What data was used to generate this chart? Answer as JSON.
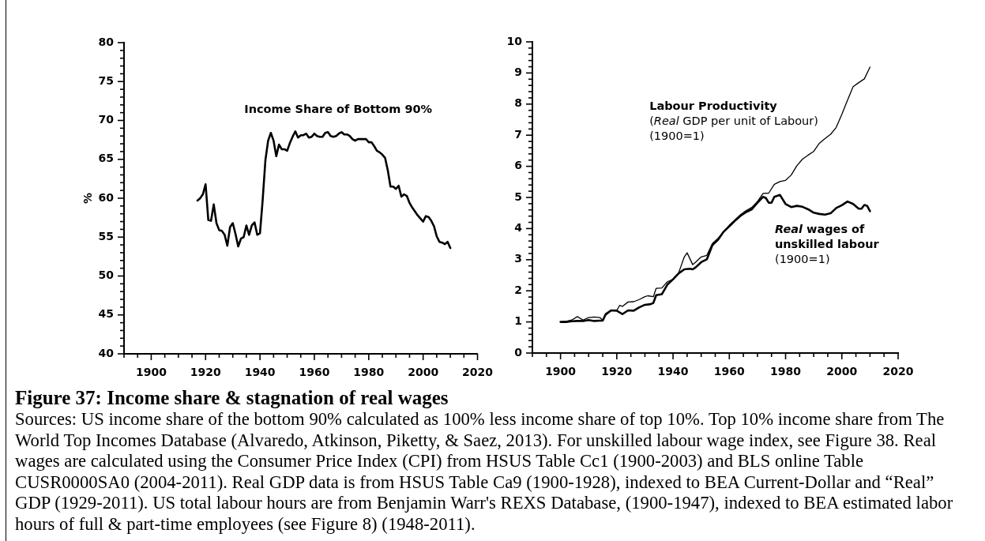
{
  "chart_data": [
    {
      "type": "line",
      "ylabel": "%",
      "marker": "none",
      "x": [
        1917,
        1918,
        1919,
        1920,
        1921,
        1922,
        1923,
        1924,
        1925,
        1926,
        1927,
        1928,
        1929,
        1930,
        1931,
        1932,
        1933,
        1934,
        1935,
        1936,
        1937,
        1938,
        1939,
        1940,
        1941,
        1942,
        1943,
        1944,
        1945,
        1946,
        1947,
        1948,
        1949,
        1950,
        1951,
        1952,
        1953,
        1954,
        1955,
        1956,
        1957,
        1958,
        1959,
        1960,
        1961,
        1962,
        1963,
        1964,
        1965,
        1966,
        1967,
        1968,
        1969,
        1970,
        1971,
        1972,
        1973,
        1974,
        1975,
        1976,
        1977,
        1978,
        1979,
        1980,
        1981,
        1982,
        1983,
        1984,
        1985,
        1986,
        1987,
        1988,
        1989,
        1990,
        1991,
        1992,
        1993,
        1994,
        1995,
        1996,
        1997,
        1998,
        1999,
        2000,
        2001,
        2002,
        2003,
        2004,
        2005,
        2006,
        2007,
        2008,
        2009,
        2010
      ],
      "series": [
        {
          "name": "Income Share of Bottom 90%",
          "color": "#000000",
          "values": [
            59.7,
            60.0,
            60.5,
            61.8,
            57.2,
            57.1,
            59.2,
            56.8,
            55.9,
            55.8,
            55.3,
            53.9,
            56.3,
            56.8,
            55.4,
            53.8,
            54.8,
            55.0,
            56.5,
            55.3,
            56.5,
            56.9,
            55.3,
            55.5,
            59.8,
            64.9,
            67.4,
            68.4,
            67.4,
            65.4,
            66.9,
            66.3,
            66.3,
            66.1,
            67.1,
            67.9,
            68.6,
            67.8,
            68.1,
            68.1,
            68.3,
            67.8,
            67.9,
            68.3,
            68.0,
            67.9,
            67.9,
            68.4,
            68.5,
            68.0,
            67.9,
            68.0,
            68.3,
            68.5,
            68.2,
            68.2,
            68.0,
            67.6,
            67.4,
            67.6,
            67.6,
            67.6,
            67.6,
            67.2,
            67.2,
            66.7,
            66.1,
            65.9,
            65.6,
            65.2,
            63.6,
            61.5,
            61.5,
            61.2,
            61.6,
            60.2,
            60.5,
            60.3,
            59.4,
            58.8,
            58.3,
            57.8,
            57.4,
            57.0,
            57.7,
            57.6,
            57.1,
            56.4,
            55.1,
            54.4,
            54.3,
            54.1,
            54.4,
            53.6
          ]
        }
      ],
      "xlim": [
        1890,
        2020
      ],
      "xticks": [
        {
          "value": 1890,
          "label": null
        },
        {
          "value": 1895,
          "label": null
        },
        1900,
        {
          "value": 1905,
          "label": null
        },
        {
          "value": 1910,
          "label": null
        },
        {
          "value": 1915,
          "label": null
        },
        1920,
        {
          "value": 1925,
          "label": null
        },
        {
          "value": 1930,
          "label": null
        },
        {
          "value": 1935,
          "label": null
        },
        1940,
        {
          "value": 1945,
          "label": null
        },
        {
          "value": 1950,
          "label": null
        },
        {
          "value": 1955,
          "label": null
        },
        1960,
        {
          "value": 1965,
          "label": null
        },
        {
          "value": 1970,
          "label": null
        },
        {
          "value": 1975,
          "label": null
        },
        1980,
        {
          "value": 1985,
          "label": null
        },
        {
          "value": 1990,
          "label": null
        },
        {
          "value": 1995,
          "label": null
        },
        2000,
        {
          "value": 2005,
          "label": null
        },
        {
          "value": 2010,
          "label": null
        },
        {
          "value": 2015,
          "label": null
        },
        2020
      ],
      "ylim": [
        40,
        80
      ],
      "yticks": [
        40,
        {
          "value": 41,
          "label": null
        },
        {
          "value": 42,
          "label": null
        },
        {
          "value": 43,
          "label": null
        },
        {
          "value": 44,
          "label": null
        },
        45,
        {
          "value": 46,
          "label": null
        },
        {
          "value": 47,
          "label": null
        },
        {
          "value": 48,
          "label": null
        },
        {
          "value": 49,
          "label": null
        },
        50,
        {
          "value": 51,
          "label": null
        },
        {
          "value": 52,
          "label": null
        },
        {
          "value": 53,
          "label": null
        },
        {
          "value": 54,
          "label": null
        },
        55,
        {
          "value": 56,
          "label": null
        },
        {
          "value": 57,
          "label": null
        },
        {
          "value": 58,
          "label": null
        },
        {
          "value": 59,
          "label": null
        },
        60,
        {
          "value": 61,
          "label": null
        },
        {
          "value": 62,
          "label": null
        },
        {
          "value": 63,
          "label": null
        },
        {
          "value": 64,
          "label": null
        },
        65,
        {
          "value": 66,
          "label": null
        },
        {
          "value": 67,
          "label": null
        },
        {
          "value": 68,
          "label": null
        },
        {
          "value": 69,
          "label": null
        },
        70,
        {
          "value": 71,
          "label": null
        },
        {
          "value": 72,
          "label": null
        },
        {
          "value": 73,
          "label": null
        },
        {
          "value": 74,
          "label": null
        },
        75,
        {
          "value": 76,
          "label": null
        },
        {
          "value": 77,
          "label": null
        },
        {
          "value": 78,
          "label": null
        },
        {
          "value": 79,
          "label": null
        },
        80
      ]
    },
    {
      "type": "line",
      "marker": "none",
      "series": [
        {
          "name": "Labour Productivity\n(Real GDP per unit of Labour)\n(1900=1)",
          "color": "#000000",
          "x": [
            1900,
            1902,
            1904,
            1906,
            1908,
            1910,
            1912,
            1914,
            1915,
            1916,
            1918,
            1920,
            1921,
            1922,
            1924,
            1926,
            1928,
            1930,
            1931,
            1933,
            1934,
            1936,
            1938,
            1940,
            1942,
            1944,
            1945,
            1947,
            1948,
            1950,
            1952,
            1954,
            1956,
            1958,
            1960,
            1962,
            1964,
            1966,
            1968,
            1970,
            1972,
            1974,
            1976,
            1978,
            1980,
            1982,
            1984,
            1986,
            1988,
            1990,
            1992,
            1994,
            1996,
            1998,
            2000,
            2002,
            2004,
            2006,
            2008,
            2010
          ],
          "values": [
            1.0,
            1.02,
            1.06,
            1.17,
            1.06,
            1.14,
            1.16,
            1.14,
            1.06,
            1.27,
            1.38,
            1.37,
            1.53,
            1.5,
            1.64,
            1.65,
            1.72,
            1.81,
            1.84,
            1.81,
            2.08,
            2.09,
            2.29,
            2.37,
            2.58,
            3.09,
            3.22,
            2.84,
            2.92,
            3.09,
            3.14,
            3.52,
            3.69,
            3.9,
            4.11,
            4.28,
            4.45,
            4.58,
            4.68,
            4.87,
            5.13,
            5.14,
            5.42,
            5.51,
            5.55,
            5.72,
            6.02,
            6.23,
            6.36,
            6.48,
            6.74,
            6.89,
            7.03,
            7.25,
            7.67,
            8.12,
            8.56,
            8.69,
            8.81,
            9.19
          ]
        },
        {
          "name": "Real wages of\nunskilled labour\n(1900=1)",
          "color": "#000000",
          "x": [
            1900,
            1902,
            1904,
            1906,
            1908,
            1910,
            1912,
            1914,
            1915,
            1916,
            1918,
            1920,
            1922,
            1924,
            1926,
            1928,
            1930,
            1932,
            1933,
            1934,
            1936,
            1938,
            1940,
            1942,
            1944,
            1946,
            1947,
            1948,
            1950,
            1952,
            1954,
            1956,
            1958,
            1960,
            1962,
            1964,
            1966,
            1968,
            1970,
            1972,
            1973,
            1974,
            1975,
            1976,
            1978,
            1980,
            1982,
            1984,
            1986,
            1988,
            1990,
            1992,
            1994,
            1996,
            1998,
            2000,
            2002,
            2004,
            2006,
            2007,
            2008,
            2009,
            2010
          ],
          "values": [
            1.0,
            1.0,
            1.02,
            1.03,
            1.03,
            1.06,
            1.03,
            1.04,
            1.04,
            1.23,
            1.37,
            1.36,
            1.25,
            1.37,
            1.36,
            1.47,
            1.55,
            1.57,
            1.61,
            1.86,
            1.89,
            2.2,
            2.37,
            2.56,
            2.69,
            2.71,
            2.69,
            2.75,
            2.92,
            3.01,
            3.47,
            3.64,
            3.9,
            4.07,
            4.25,
            4.41,
            4.53,
            4.62,
            4.83,
            5.02,
            4.98,
            4.83,
            4.83,
            5.02,
            5.08,
            4.79,
            4.69,
            4.73,
            4.7,
            4.62,
            4.51,
            4.47,
            4.45,
            4.49,
            4.66,
            4.75,
            4.87,
            4.79,
            4.64,
            4.64,
            4.76,
            4.73,
            4.56
          ]
        }
      ],
      "xlim": [
        1890,
        2020
      ],
      "xticks": [
        {
          "value": 1890,
          "label": null
        },
        {
          "value": 1895,
          "label": null
        },
        1900,
        {
          "value": 1905,
          "label": null
        },
        {
          "value": 1910,
          "label": null
        },
        {
          "value": 1915,
          "label": null
        },
        1920,
        {
          "value": 1925,
          "label": null
        },
        {
          "value": 1930,
          "label": null
        },
        {
          "value": 1935,
          "label": null
        },
        1940,
        {
          "value": 1945,
          "label": null
        },
        {
          "value": 1950,
          "label": null
        },
        {
          "value": 1955,
          "label": null
        },
        1960,
        {
          "value": 1965,
          "label": null
        },
        {
          "value": 1970,
          "label": null
        },
        {
          "value": 1975,
          "label": null
        },
        1980,
        {
          "value": 1985,
          "label": null
        },
        {
          "value": 1990,
          "label": null
        },
        {
          "value": 1995,
          "label": null
        },
        2000,
        {
          "value": 2005,
          "label": null
        },
        {
          "value": 2010,
          "label": null
        },
        {
          "value": 2015,
          "label": null
        },
        2020
      ],
      "ylim": [
        0,
        10
      ],
      "yticks": [
        0,
        {
          "value": 0.2,
          "label": null
        },
        {
          "value": 0.4,
          "label": null
        },
        {
          "value": 0.6,
          "label": null
        },
        {
          "value": 0.8,
          "label": null
        },
        1,
        {
          "value": 1.2,
          "label": null
        },
        {
          "value": 1.4,
          "label": null
        },
        {
          "value": 1.6,
          "label": null
        },
        {
          "value": 1.8,
          "label": null
        },
        2,
        {
          "value": 2.2,
          "label": null
        },
        {
          "value": 2.4,
          "label": null
        },
        {
          "value": 2.6,
          "label": null
        },
        {
          "value": 2.8,
          "label": null
        },
        3,
        {
          "value": 3.2,
          "label": null
        },
        {
          "value": 3.4,
          "label": null
        },
        {
          "value": 3.6,
          "label": null
        },
        {
          "value": 3.8,
          "label": null
        },
        4,
        {
          "value": 4.2,
          "label": null
        },
        {
          "value": 4.4,
          "label": null
        },
        {
          "value": 4.6,
          "label": null
        },
        {
          "value": 4.8,
          "label": null
        },
        5,
        {
          "value": 5.2,
          "label": null
        },
        {
          "value": 5.4,
          "label": null
        },
        {
          "value": 5.6,
          "label": null
        },
        {
          "value": 5.8,
          "label": null
        },
        6,
        {
          "value": 6.2,
          "label": null
        },
        {
          "value": 6.4,
          "label": null
        },
        {
          "value": 6.6,
          "label": null
        },
        {
          "value": 6.8,
          "label": null
        },
        7,
        {
          "value": 7.2,
          "label": null
        },
        {
          "value": 7.4,
          "label": null
        },
        {
          "value": 7.6,
          "label": null
        },
        {
          "value": 7.8,
          "label": null
        },
        8,
        {
          "value": 8.2,
          "label": null
        },
        {
          "value": 8.4,
          "label": null
        },
        {
          "value": 8.6,
          "label": null
        },
        {
          "value": 8.8,
          "label": null
        },
        9,
        {
          "value": 9.2,
          "label": null
        },
        {
          "value": 9.4,
          "label": null
        },
        {
          "value": 9.6,
          "label": null
        },
        {
          "value": 9.8,
          "label": null
        },
        10
      ]
    },
    {
      "type": "other",
      "title": "Figure 37: Income share & stagnation of real wages",
      "annotations": [
        "Sources: US income share of the bottom 90% calculated as 100% less income share of top 10%. Top 10% income share from The World Top Incomes Database (Alvaredo, Atkinson, Piketty, & Saez, 2013). For unskilled labour wage index, see Figure 38. Real wages are calculated using the Consumer Price Index (CPI) from HSUS Table Cc1 (1900-2003) and BLS online Table CUSR0000SA0 (2004-2011). Real GDP data is from HSUS Table Ca9 (1900-1928), indexed to BEA Current-Dollar and “Real” GDP (1929-2011). US total labour hours are from Benjamin Warr's REXS Database, (1900-1947), indexed to BEA estimated labor hours of full & part-time employees (see Figure 8) (1948-2011)."
      ]
    }
  ]
}
